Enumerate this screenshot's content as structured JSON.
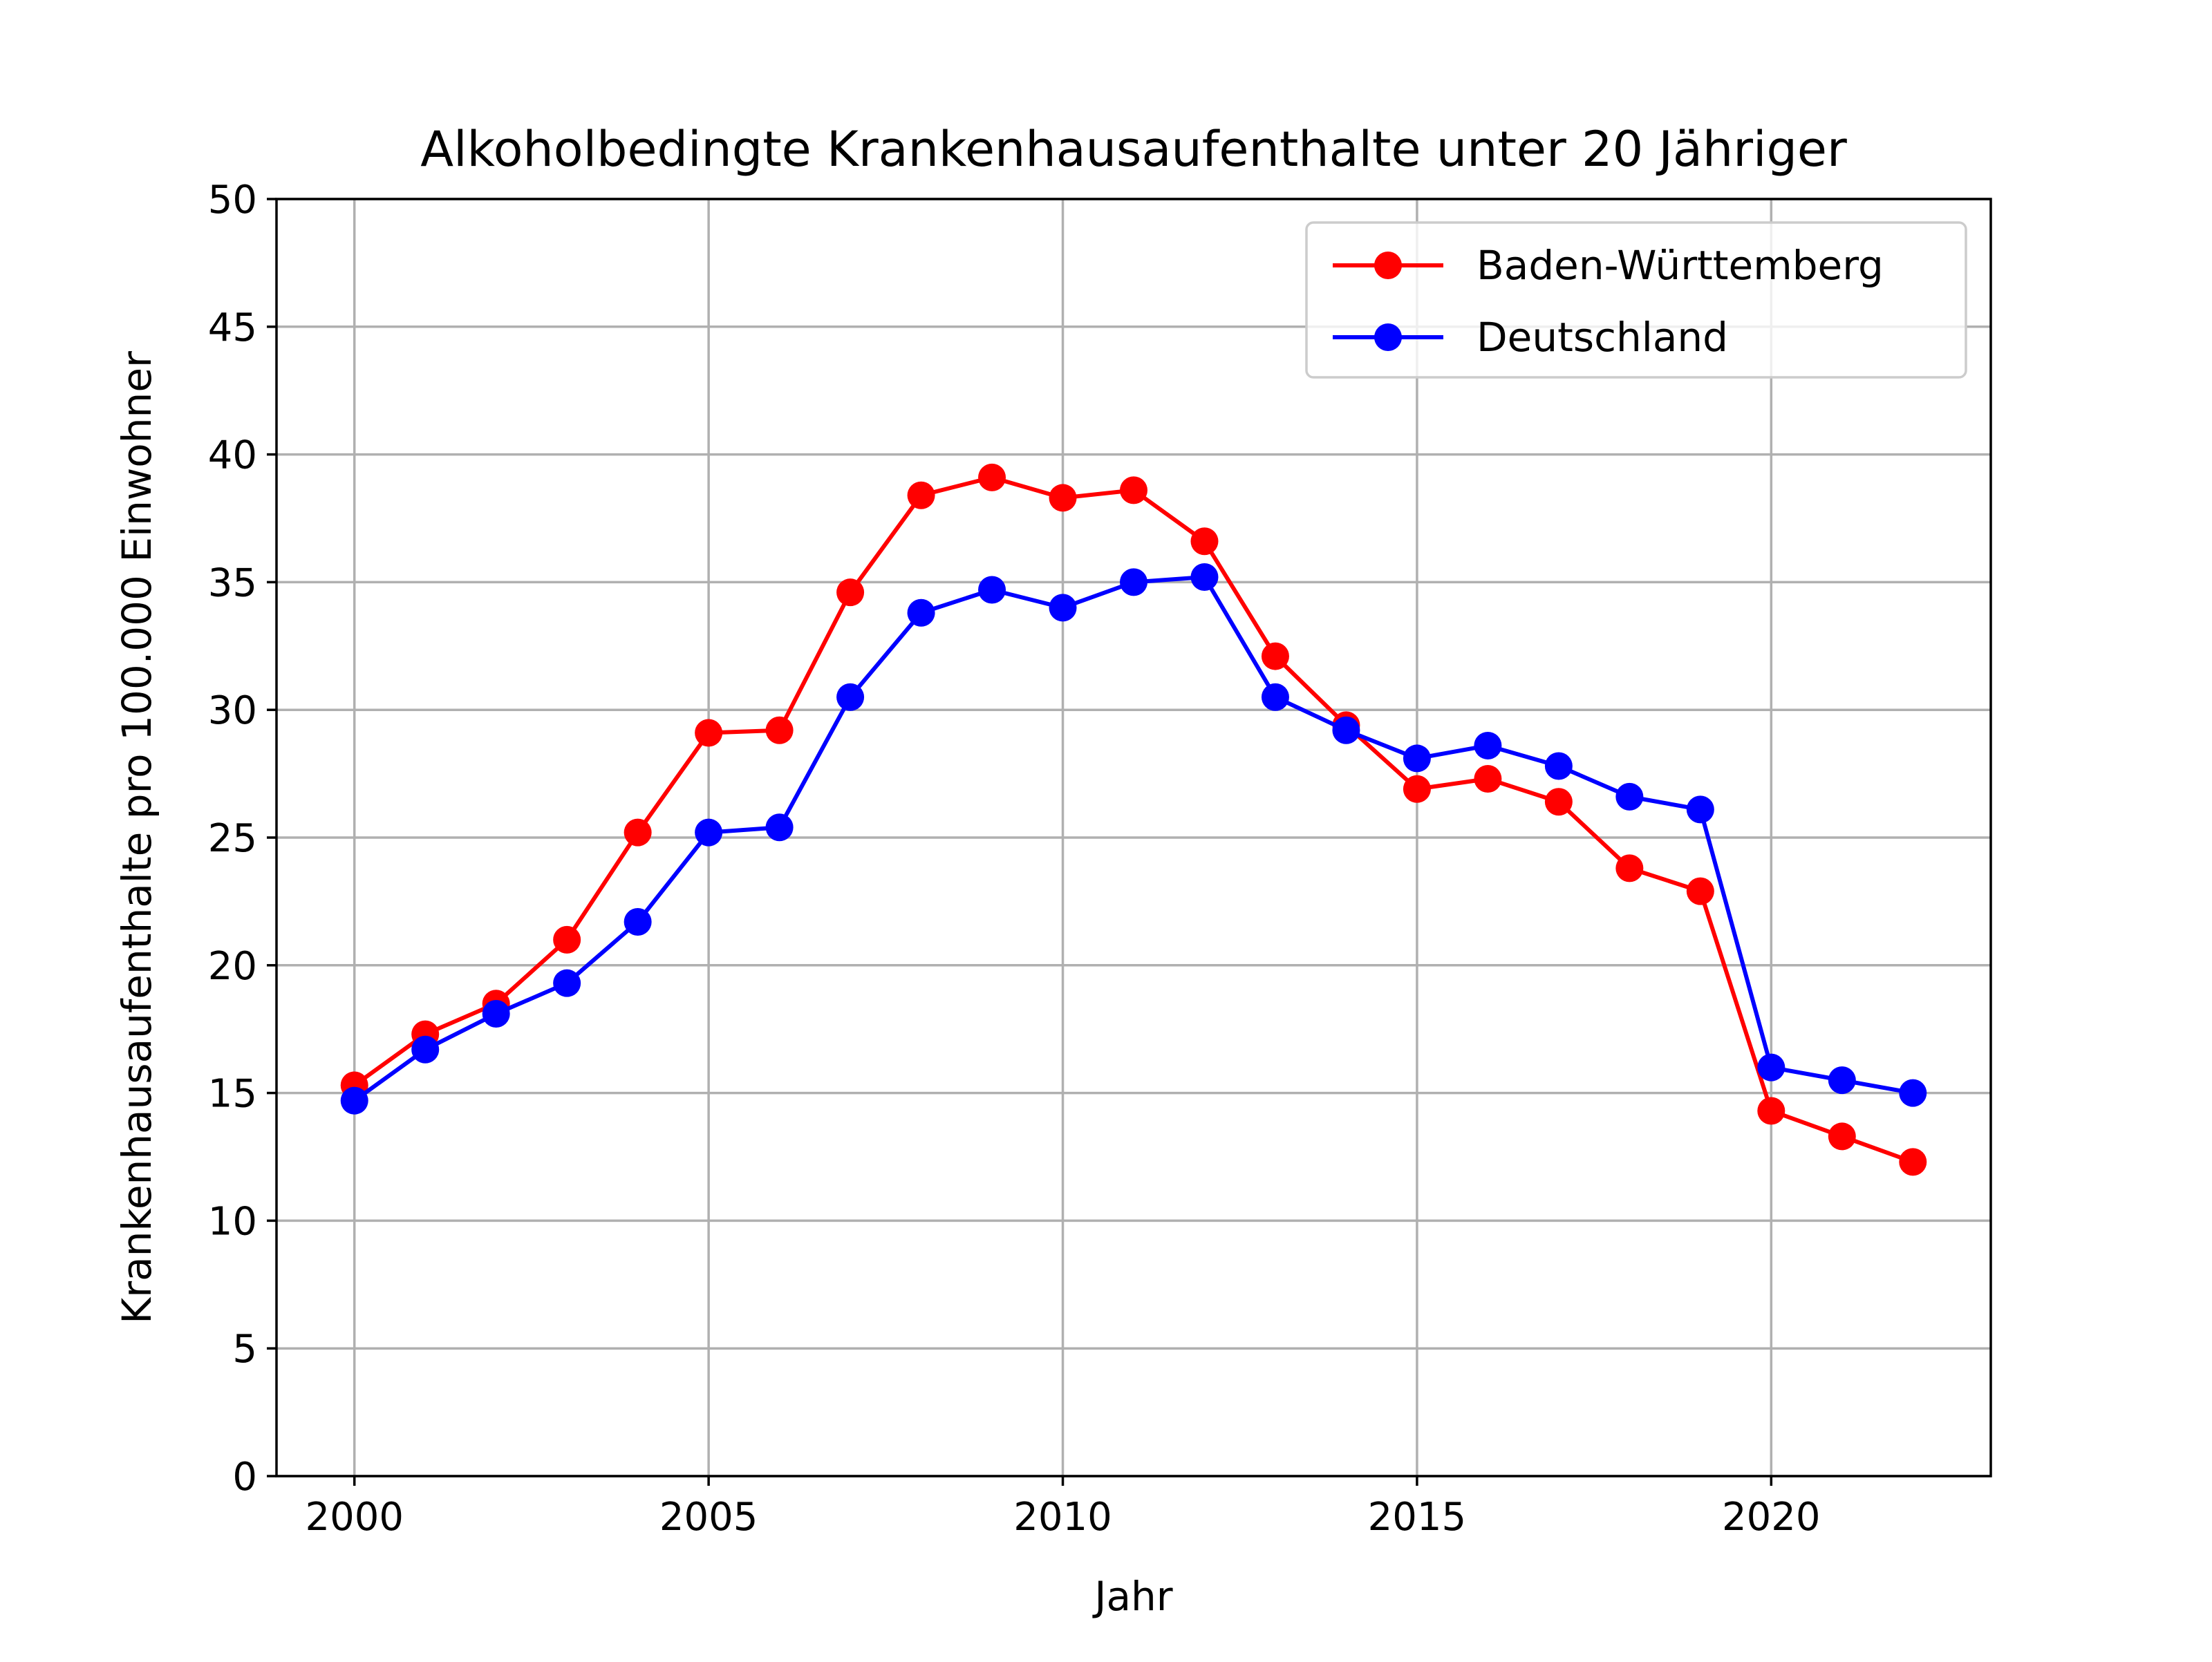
{
  "chart_data": {
    "type": "line",
    "title": "Alkoholbedingte Krankenhausaufenthalte unter 20 Jähriger",
    "xlabel": "Jahr",
    "ylabel": "Krankenhausaufenthalte pro 100.000 Einwohner",
    "xlim": [
      1998.9,
      2023.1
    ],
    "ylim": [
      0,
      50
    ],
    "xticks": [
      2000,
      2005,
      2010,
      2015,
      2020
    ],
    "yticks": [
      0,
      5,
      10,
      15,
      20,
      25,
      30,
      35,
      40,
      45,
      50
    ],
    "grid": true,
    "legend_position": "top-right",
    "x": [
      2000,
      2001,
      2002,
      2003,
      2004,
      2005,
      2006,
      2007,
      2008,
      2009,
      2010,
      2011,
      2012,
      2013,
      2014,
      2015,
      2016,
      2017,
      2018,
      2019,
      2020,
      2021,
      2022
    ],
    "series": [
      {
        "name": "Baden-Württemberg",
        "color": "#ff0000",
        "values": [
          15.3,
          17.3,
          18.5,
          21.0,
          25.2,
          29.1,
          29.2,
          34.6,
          38.4,
          39.1,
          38.3,
          38.6,
          36.6,
          32.1,
          29.4,
          26.9,
          27.3,
          26.4,
          23.8,
          22.9,
          14.3,
          13.3,
          12.3
        ]
      },
      {
        "name": "Deutschland",
        "color": "#0000ff",
        "values": [
          14.7,
          16.7,
          18.1,
          19.3,
          21.7,
          25.2,
          25.4,
          30.5,
          33.8,
          34.7,
          34.0,
          35.0,
          35.2,
          30.5,
          29.2,
          28.1,
          28.6,
          27.8,
          26.6,
          26.1,
          16.0,
          15.5,
          15.0
        ]
      }
    ]
  }
}
